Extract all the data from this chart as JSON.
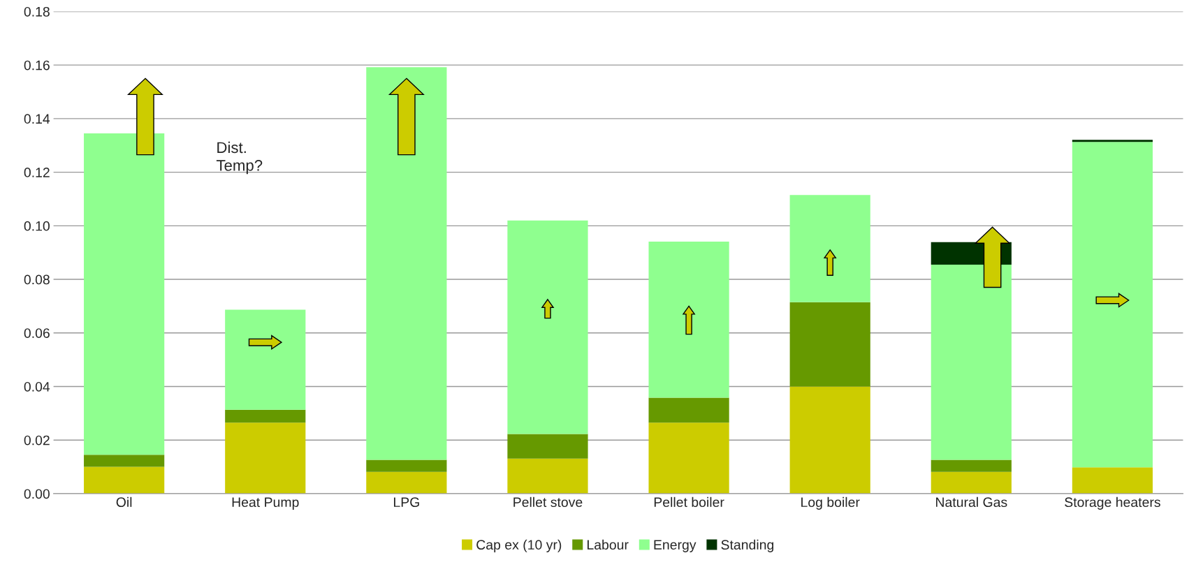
{
  "chart_data": {
    "type": "bar",
    "stacked": true,
    "categories": [
      "Oil",
      "Heat Pump",
      "LPG",
      "Pellet stove",
      "Pellet boiler",
      "Log boiler",
      "Natural Gas",
      "Storage heaters"
    ],
    "series": [
      {
        "name": "Cap ex (10 yr)",
        "color": "#cccc00",
        "values": [
          0.01,
          0.0265,
          0.0081,
          0.0131,
          0.0265,
          0.04,
          0.0081,
          0.0098
        ]
      },
      {
        "name": "Labour",
        "color": "#669900",
        "values": [
          0.0045,
          0.0048,
          0.0045,
          0.0092,
          0.0093,
          0.0315,
          0.0045,
          null
        ]
      },
      {
        "name": "Energy",
        "color": "#8fff8f",
        "values": [
          0.12,
          0.0374,
          0.1466,
          0.0797,
          0.0583,
          0.04,
          0.0729,
          0.1215
        ]
      },
      {
        "name": "Standing",
        "color": "#003300",
        "values": [
          null,
          null,
          null,
          null,
          null,
          null,
          0.0084,
          0.0008
        ]
      }
    ],
    "ylim": [
      0,
      0.18
    ],
    "yticks": [
      {
        "value": 0,
        "label": "0.00"
      },
      {
        "value": 0.02,
        "label": "0.02"
      },
      {
        "value": 0.04,
        "label": "0.04"
      },
      {
        "value": 0.06,
        "label": "0.06"
      },
      {
        "value": 0.08,
        "label": "0.08"
      },
      {
        "value": 0.1,
        "label": "0.10"
      },
      {
        "value": 0.12,
        "label": "0.12"
      },
      {
        "value": 0.14,
        "label": "0.14"
      },
      {
        "value": 0.16,
        "label": "0.16"
      },
      {
        "value": 0.18,
        "label": "0.18"
      }
    ],
    "grid": "y",
    "legend": "bottom",
    "annotations": [
      "Dist.\nTemp?"
    ]
  }
}
